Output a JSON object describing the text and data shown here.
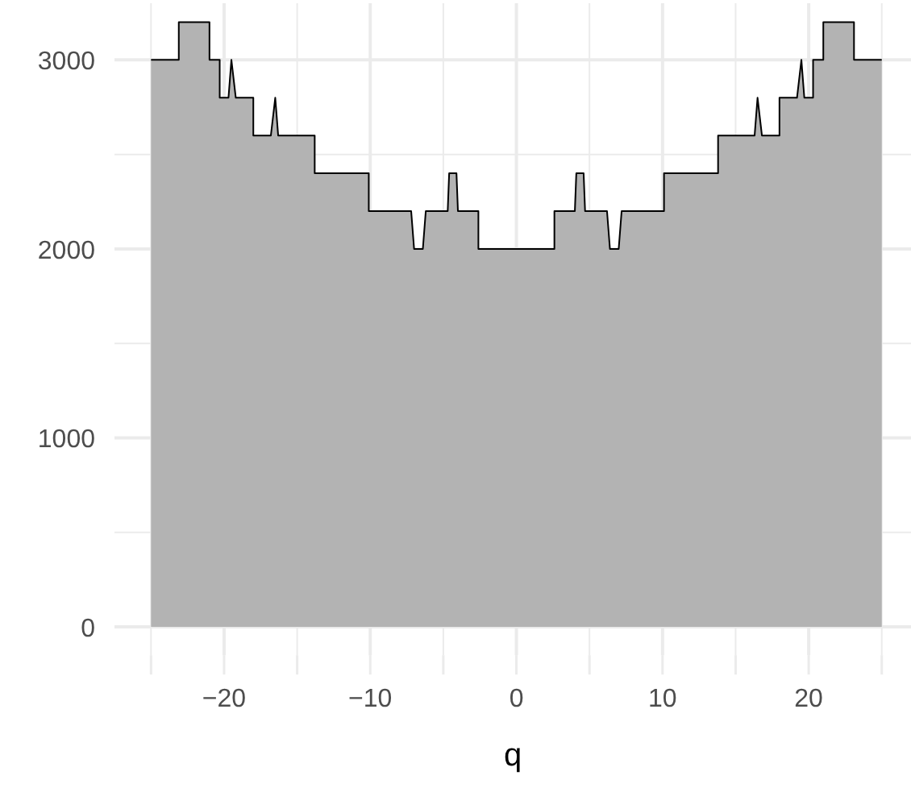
{
  "chart_data": {
    "type": "area",
    "xlabel": "q",
    "x": [
      -25,
      -23.1,
      -23.1,
      -21,
      -21,
      -20.3,
      -20.3,
      -19.7,
      -19.5,
      -19.2,
      -18,
      -18,
      -16.8,
      -16.5,
      -16.3,
      -13.8,
      -13.8,
      -10.1,
      -10.1,
      -7.2,
      -7,
      -6.4,
      -6.2,
      -4.7,
      -4.6,
      -4.1,
      -4,
      -2.6,
      -2.6,
      2.6,
      2.6,
      4,
      4.1,
      4.6,
      4.7,
      6.2,
      6.4,
      7,
      7.2,
      10.1,
      10.1,
      13.8,
      13.8,
      16.3,
      16.5,
      16.8,
      18,
      18,
      19.2,
      19.5,
      19.7,
      20.3,
      20.3,
      21,
      21,
      23.1,
      23.1,
      25
    ],
    "series": [
      {
        "color": "#b3b3b3",
        "values": [
          3000,
          3000,
          3200,
          3200,
          3000,
          3000,
          2800,
          2800,
          3000,
          2800,
          2800,
          2600,
          2600,
          2800,
          2600,
          2600,
          2400,
          2400,
          2200,
          2200,
          2000,
          2000,
          2200,
          2200,
          2400,
          2400,
          2200,
          2200,
          2000,
          2000,
          2200,
          2200,
          2400,
          2400,
          2200,
          2200,
          2000,
          2000,
          2200,
          2200,
          2400,
          2400,
          2600,
          2600,
          2800,
          2600,
          2600,
          2800,
          2800,
          3000,
          2800,
          2800,
          3000,
          3000,
          3200,
          3200,
          3000,
          3000
        ]
      }
    ],
    "xlim": [
      -27.5,
      27
    ],
    "ylim": [
      -150,
      3300
    ],
    "xticks": [
      {
        "value": -25,
        "label": null
      },
      {
        "value": -20,
        "label": "−20"
      },
      {
        "value": -15,
        "label": null
      },
      {
        "value": -10,
        "label": "−10"
      },
      {
        "value": -5,
        "label": null
      },
      0,
      {
        "value": 5,
        "label": null
      },
      10,
      {
        "value": 15,
        "label": null
      },
      20,
      {
        "value": 25,
        "label": null
      }
    ],
    "yticks": [
      0,
      {
        "value": 500,
        "label": null
      },
      1000,
      {
        "value": 1500,
        "label": null
      },
      2000,
      {
        "value": 2500,
        "label": null
      },
      3000
    ],
    "grid": true
  }
}
